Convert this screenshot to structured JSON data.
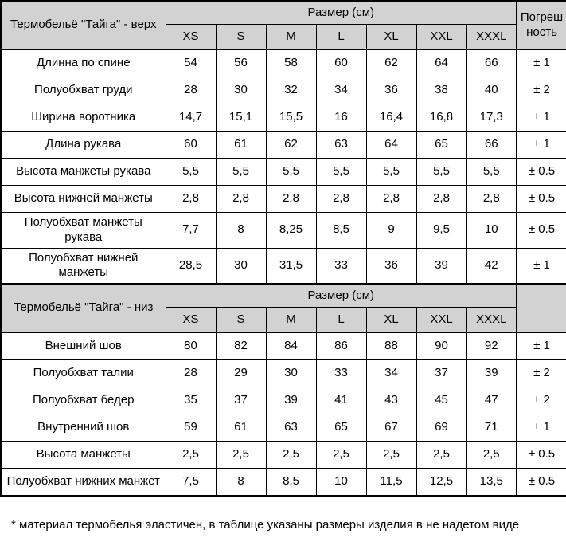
{
  "table": {
    "sections": [
      {
        "title": "Термобельё \"Тайга\" - верх",
        "size_header": "Размер (см)",
        "tolerance_header_line1": "Погреш",
        "tolerance_header_line2": "ность",
        "sizes": [
          "XS",
          "S",
          "M",
          "L",
          "XL",
          "XXL",
          "XXXL"
        ],
        "rows": [
          {
            "label": "Длинна по спине",
            "values": [
              "54",
              "56",
              "58",
              "60",
              "62",
              "64",
              "66"
            ],
            "tolerance": "± 1"
          },
          {
            "label": "Полуобхват груди",
            "values": [
              "28",
              "30",
              "32",
              "34",
              "36",
              "38",
              "40"
            ],
            "tolerance": "± 2"
          },
          {
            "label": "Ширина воротника",
            "values": [
              "14,7",
              "15,1",
              "15,5",
              "16",
              "16,4",
              "16,8",
              "17,3"
            ],
            "tolerance": "± 1"
          },
          {
            "label": "Длина рукава",
            "values": [
              "60",
              "61",
              "62",
              "63",
              "64",
              "65",
              "66"
            ],
            "tolerance": "± 1"
          },
          {
            "label": "Высота манжеты рукава",
            "values": [
              "5,5",
              "5,5",
              "5,5",
              "5,5",
              "5,5",
              "5,5",
              "5,5"
            ],
            "tolerance": "± 0.5"
          },
          {
            "label": "Высота нижней манжеты",
            "values": [
              "2,8",
              "2,8",
              "2,8",
              "2,8",
              "2,8",
              "2,8",
              "2,8"
            ],
            "tolerance": "± 0.5"
          },
          {
            "label": "Полуобхват манжеты рукава",
            "values": [
              "7,7",
              "8",
              "8,25",
              "8,5",
              "9",
              "9,5",
              "10"
            ],
            "tolerance": "± 0.5"
          },
          {
            "label": "Полуобхват нижней манжеты",
            "values": [
              "28,5",
              "30",
              "31,5",
              "33",
              "36",
              "39",
              "42"
            ],
            "tolerance": "± 1"
          }
        ]
      },
      {
        "title": "Термобельё \"Тайга\" - низ",
        "size_header": "Размер (см)",
        "sizes": [
          "XS",
          "S",
          "M",
          "L",
          "XL",
          "XXL",
          "XXXL"
        ],
        "rows": [
          {
            "label": "Внешний шов",
            "values": [
              "80",
              "82",
              "84",
              "86",
              "88",
              "90",
              "92"
            ],
            "tolerance": "± 1"
          },
          {
            "label": "Полуобхват талии",
            "values": [
              "28",
              "29",
              "30",
              "33",
              "34",
              "37",
              "39"
            ],
            "tolerance": "± 2"
          },
          {
            "label": "Полуобхват бедер",
            "values": [
              "35",
              "37",
              "39",
              "41",
              "43",
              "45",
              "47"
            ],
            "tolerance": "± 2"
          },
          {
            "label": "Внутренний шов",
            "values": [
              "59",
              "61",
              "63",
              "65",
              "67",
              "69",
              "71"
            ],
            "tolerance": "± 1"
          },
          {
            "label": "Высота манжеты",
            "values": [
              "2,5",
              "2,5",
              "2,5",
              "2,5",
              "2,5",
              "2,5",
              "2,5"
            ],
            "tolerance": "± 0.5"
          },
          {
            "label": "Полуобхват нижних манжет",
            "values": [
              "7,5",
              "8",
              "8,5",
              "10",
              "11,5",
              "12,5",
              "13,5"
            ],
            "tolerance": "± 0.5"
          }
        ]
      }
    ],
    "footnote": "* материал термобелья эластичен, в таблице указаны размеры изделия в не надетом виде"
  },
  "colors": {
    "header_background": "#d2d2d2",
    "border": "#000000",
    "text": "#000000",
    "page_background": "#ffffff"
  }
}
